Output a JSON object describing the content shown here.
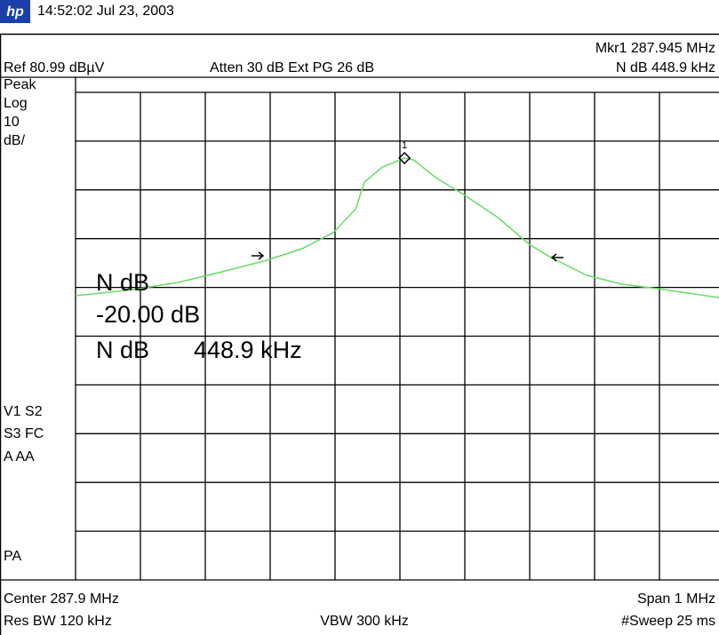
{
  "header": {
    "logo": "hp",
    "timestamp": "14:52:02  Jul 23, 2003"
  },
  "top_info": {
    "marker": "Mkr1  287.945 MHz",
    "ref": "Ref 80.99 dBµV",
    "atten": "Atten 30 dB  Ext PG 26 dB",
    "ndb": "N dB    448.9 kHz"
  },
  "left_labels": [
    "Peak",
    "Log",
    "10",
    "dB/",
    "V1  S2",
    "S3  FC",
    "A   AA",
    "PA"
  ],
  "annotations": {
    "line1": "N dB",
    "line2": "-20.00 dB",
    "line3_name": "N dB",
    "line3_value": "448.9 kHz",
    "marker_number": "1"
  },
  "bottom_info": {
    "center": "Center 287.9 MHz",
    "span": "Span 1 MHz",
    "rbw": "Res BW 120 kHz",
    "vbw": "VBW 300 kHz",
    "sweep": "#Sweep 25 ms"
  },
  "chart_data": {
    "type": "line",
    "color": "#66dd66",
    "x": [
      287.4,
      287.489,
      287.558,
      287.626,
      287.695,
      287.749,
      287.797,
      287.832,
      287.845,
      287.873,
      287.907,
      287.921,
      287.955,
      287.996,
      288.051,
      288.099,
      288.133,
      288.188,
      288.242,
      288.297,
      288.392
    ],
    "values": [
      39.28,
      40.55,
      42.01,
      44.2,
      46.56,
      48.93,
      52.2,
      57.13,
      62.59,
      65.69,
      67.51,
      67.15,
      63.5,
      60.22,
      55.31,
      49.84,
      47.11,
      43.47,
      41.64,
      40.73,
      38.9
    ],
    "xlim": [
      287.4,
      288.4
    ],
    "ylim": [
      -19.01,
      80.99
    ]
  }
}
